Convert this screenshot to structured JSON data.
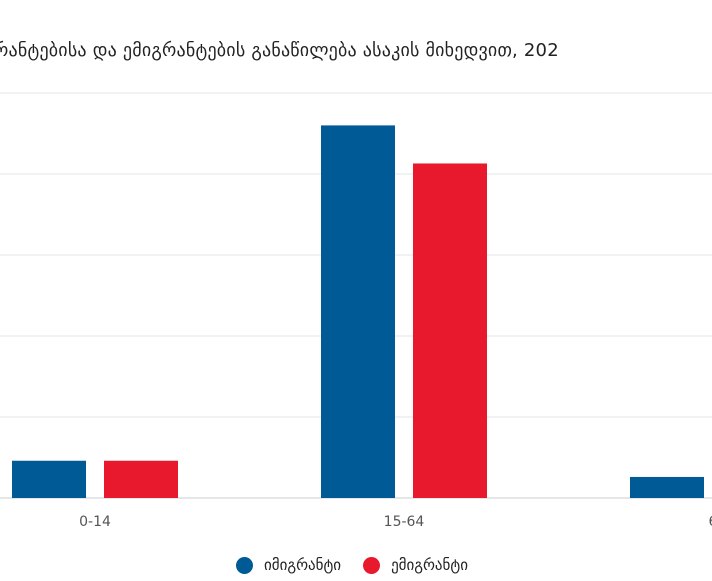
{
  "chart_data": {
    "type": "bar",
    "title": "რანტებისა და ემიგრანტების განაწილება ასაკის მიხედვით, 202",
    "categories": [
      "0-14",
      "15-64",
      "6"
    ],
    "series": [
      {
        "name": "იმიგრანტი",
        "color": "#005a96",
        "values": [
          4.6,
          46.0,
          2.6
        ]
      },
      {
        "name": "ემიგრანტი",
        "color": "#e8192c",
        "values": [
          4.6,
          41.3,
          null
        ]
      }
    ],
    "ylim": [
      0,
      50
    ],
    "grid": true,
    "legend_position": "bottom"
  }
}
